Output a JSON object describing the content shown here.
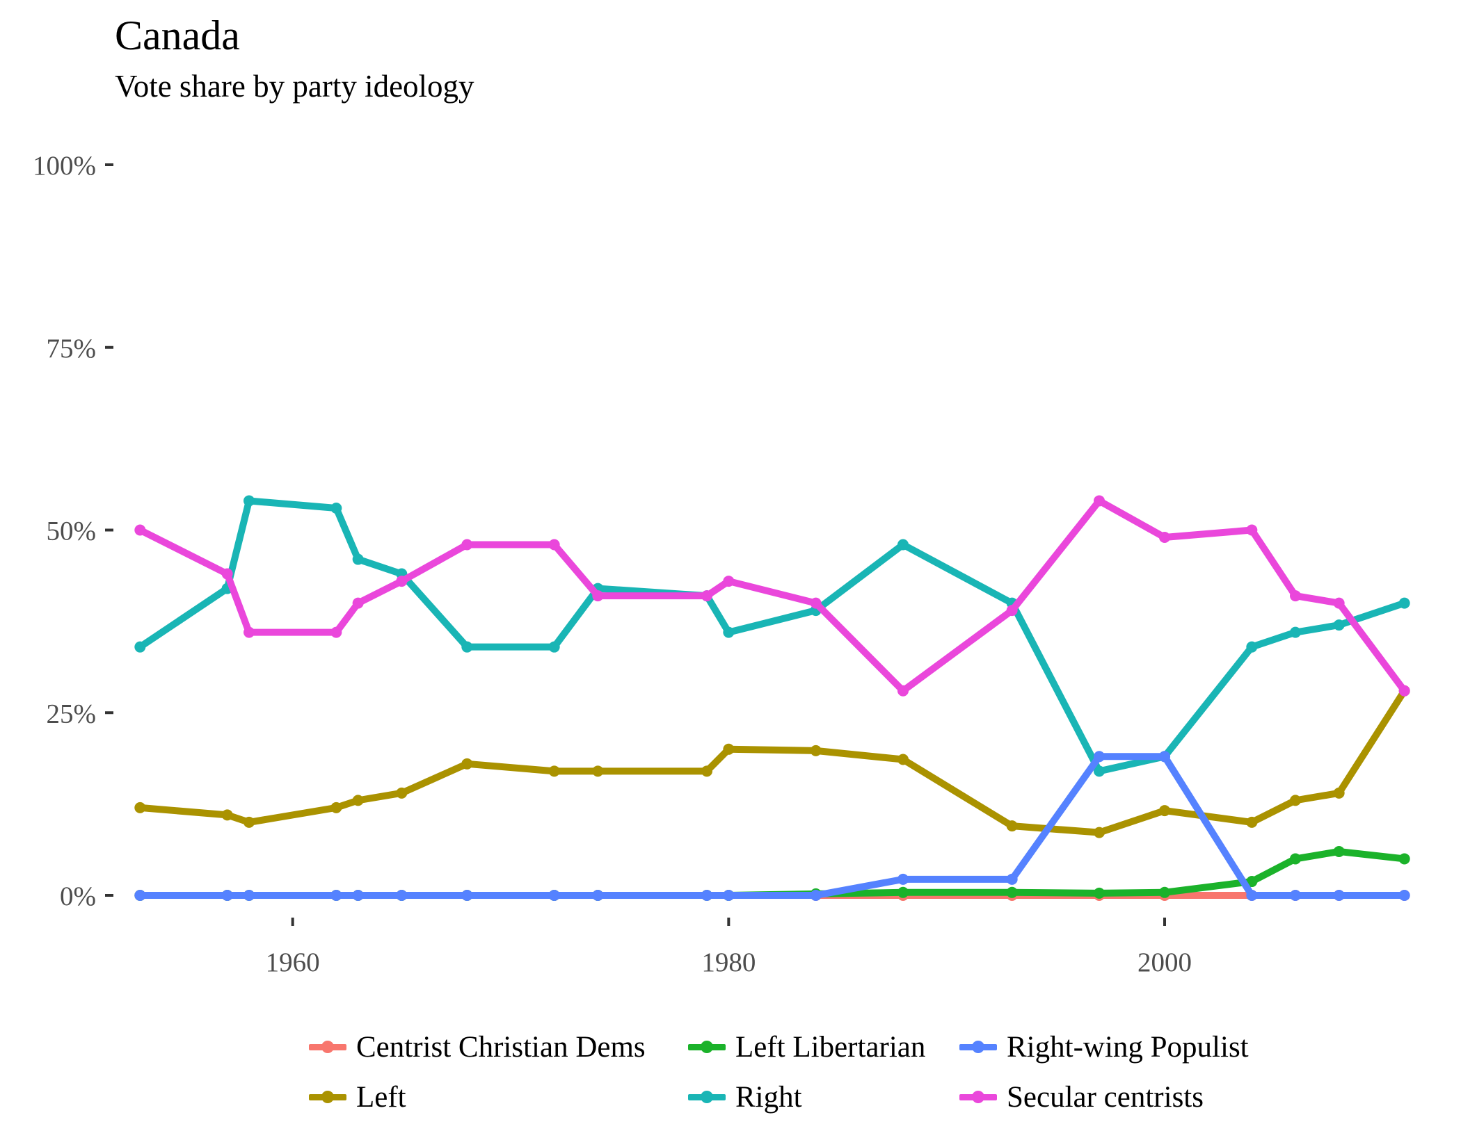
{
  "chart_data": {
    "type": "line",
    "title": "Canada",
    "subtitle": "Vote share by party ideology",
    "xlabel": "",
    "ylabel": "",
    "xlim": [
      1952,
      2012
    ],
    "ylim": [
      0,
      100
    ],
    "x_ticks": [
      1960,
      1980,
      2000
    ],
    "x_tick_labels": [
      "1960",
      "1980",
      "2000"
    ],
    "y_ticks": [
      0,
      25,
      50,
      75,
      100
    ],
    "y_tick_labels": [
      "0%",
      "25%",
      "50%",
      "75%",
      "100%"
    ],
    "grid": false,
    "legend_position": "bottom",
    "x": [
      1953,
      1957,
      1958,
      1962,
      1963,
      1965,
      1968,
      1972,
      1974,
      1979,
      1980,
      1984,
      1988,
      1993,
      1997,
      2000,
      2004,
      2006,
      2008,
      2011
    ],
    "series": [
      {
        "name": "Centrist Christian Dems",
        "color": "#F8766D",
        "values": [
          0,
          0,
          0,
          0,
          0,
          0,
          0,
          0,
          0,
          0,
          0,
          0,
          0,
          0,
          0,
          0,
          0,
          0,
          0,
          0
        ]
      },
      {
        "name": "Left Libertarian",
        "color": "#1BB22A",
        "values": [
          0,
          0,
          0,
          0,
          0,
          0,
          0,
          0,
          0,
          0,
          0,
          0.2,
          0.4,
          0.4,
          0.3,
          0.4,
          1.9,
          5,
          6,
          5
        ]
      },
      {
        "name": "Right-wing Populist",
        "color": "#5582FF",
        "values": [
          0,
          0,
          0,
          0,
          0,
          0,
          0,
          0,
          0,
          0,
          0,
          0,
          2.2,
          2.2,
          19,
          19,
          0,
          0,
          0,
          0
        ]
      },
      {
        "name": "Left",
        "color": "#AA9200",
        "values": [
          12,
          11,
          10,
          12,
          13,
          14,
          18,
          17,
          17,
          17,
          20,
          19.8,
          18.6,
          9.5,
          8.6,
          11.6,
          10,
          13,
          14,
          28
        ]
      },
      {
        "name": "Right",
        "color": "#19B5B5",
        "values": [
          34,
          42,
          54,
          53,
          46,
          44,
          34,
          34,
          42,
          41,
          36,
          39,
          48,
          40,
          17,
          19,
          34,
          36,
          37,
          40
        ]
      },
      {
        "name": "Secular centrists",
        "color": "#EA47DB",
        "values": [
          50,
          44,
          36,
          36,
          40,
          43,
          48,
          48,
          41,
          41,
          43,
          40,
          28,
          39,
          54,
          49,
          50,
          41,
          40,
          28
        ]
      }
    ],
    "legend_rows": [
      [
        "Centrist Christian Dems",
        "Left Libertarian",
        "Right-wing Populist"
      ],
      [
        "Left",
        "Right",
        "Secular centrists"
      ]
    ],
    "draw_order": [
      "Centrist Christian Dems",
      "Left",
      "Left Libertarian",
      "Right",
      "Right-wing Populist",
      "Secular centrists"
    ]
  }
}
